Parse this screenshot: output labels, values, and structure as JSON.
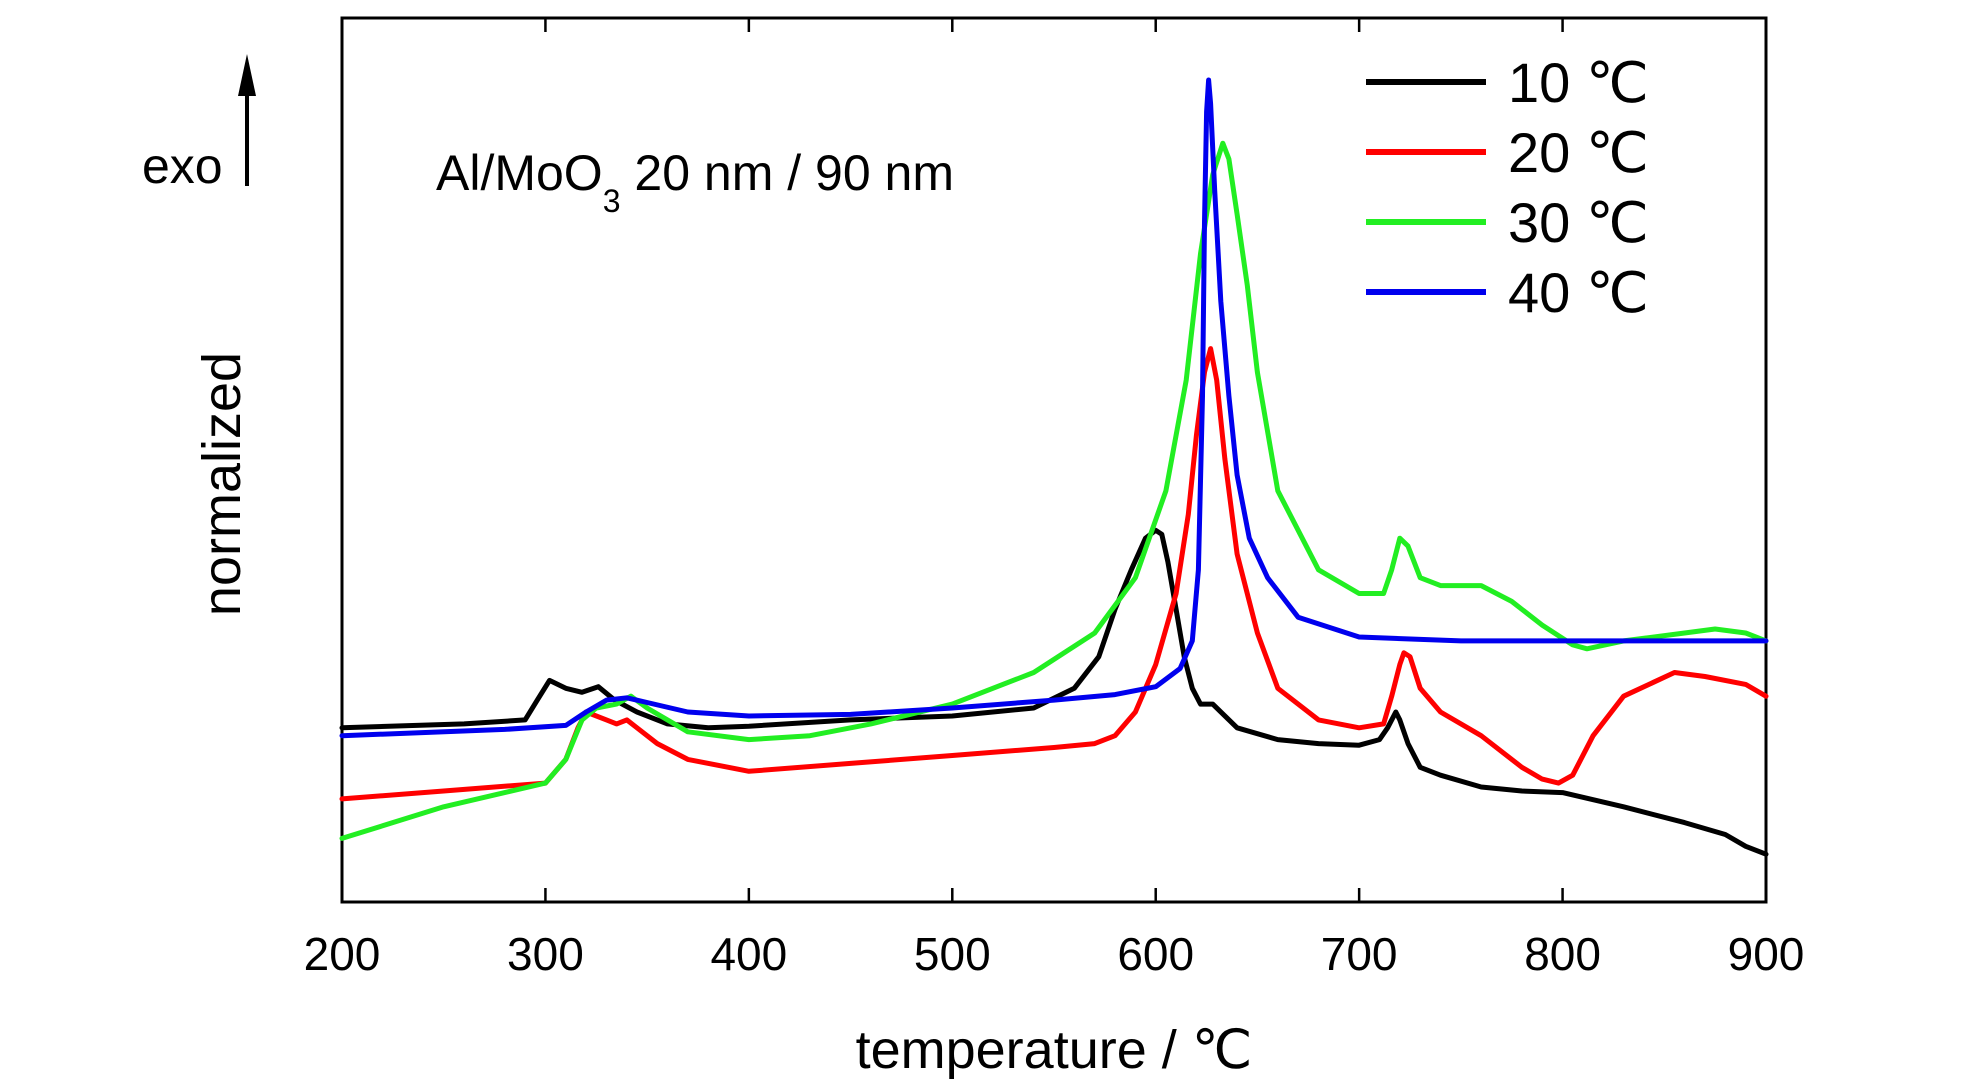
{
  "chart_data": {
    "type": "line",
    "xlabel": "temperature / ℃",
    "ylabel": "normalized",
    "xlim": [
      200,
      900
    ],
    "ylim": [
      0,
      1
    ],
    "y_ticks_shown": false,
    "grid": false,
    "legend_position": "top-right",
    "x_ticks": [
      "200",
      "300",
      "400",
      "500",
      "600",
      "700",
      "800",
      "900"
    ],
    "annotation": {
      "prefix": "Al/MoO",
      "sub": "3",
      "suffix": " 20 nm / 90 nm"
    },
    "exo_label": "exo",
    "series": [
      {
        "name": "10 ℃",
        "color": "#000000",
        "x": [
          200,
          260,
          290,
          296,
          302,
          310,
          318,
          326,
          334,
          345,
          360,
          380,
          400,
          450,
          500,
          540,
          560,
          572,
          580,
          588,
          595,
          600,
          603,
          606,
          610,
          614,
          618,
          622,
          628,
          640,
          660,
          680,
          700,
          710,
          714,
          718,
          720,
          724,
          730,
          740,
          760,
          780,
          800,
          830,
          860,
          880,
          890,
          900
        ],
        "y": [
          0.18,
          0.185,
          0.19,
          0.215,
          0.24,
          0.23,
          0.225,
          0.232,
          0.215,
          0.2,
          0.185,
          0.18,
          0.182,
          0.19,
          0.195,
          0.205,
          0.23,
          0.27,
          0.33,
          0.38,
          0.42,
          0.43,
          0.425,
          0.39,
          0.33,
          0.27,
          0.23,
          0.21,
          0.21,
          0.18,
          0.165,
          0.16,
          0.158,
          0.165,
          0.18,
          0.2,
          0.19,
          0.16,
          0.13,
          0.12,
          0.105,
          0.1,
          0.098,
          0.08,
          0.06,
          0.045,
          0.03,
          0.02
        ]
      },
      {
        "name": "20 ℃",
        "color": "#ff0000",
        "x": [
          200,
          250,
          300,
          310,
          316,
          320,
          330,
          335,
          340,
          345,
          355,
          370,
          400,
          450,
          500,
          550,
          570,
          580,
          590,
          600,
          610,
          616,
          620,
          624,
          627,
          630,
          634,
          640,
          650,
          660,
          680,
          700,
          712,
          716,
          720,
          722,
          725,
          730,
          740,
          760,
          780,
          790,
          798,
          805,
          815,
          830,
          855,
          870,
          890,
          900
        ],
        "y": [
          0.09,
          0.1,
          0.11,
          0.14,
          0.18,
          0.2,
          0.19,
          0.185,
          0.19,
          0.18,
          0.16,
          0.14,
          0.125,
          0.135,
          0.145,
          0.155,
          0.16,
          0.17,
          0.2,
          0.26,
          0.35,
          0.45,
          0.55,
          0.63,
          0.66,
          0.62,
          0.52,
          0.4,
          0.3,
          0.23,
          0.19,
          0.18,
          0.185,
          0.22,
          0.26,
          0.275,
          0.27,
          0.23,
          0.2,
          0.17,
          0.13,
          0.115,
          0.11,
          0.12,
          0.17,
          0.22,
          0.25,
          0.245,
          0.235,
          0.22
        ]
      },
      {
        "name": "30 ℃",
        "color": "#22ee22",
        "x": [
          200,
          250,
          300,
          310,
          318,
          325,
          335,
          342,
          350,
          370,
          400,
          430,
          460,
          500,
          540,
          570,
          590,
          605,
          615,
          622,
          628,
          633,
          636,
          640,
          645,
          650,
          660,
          680,
          700,
          712,
          716,
          720,
          724,
          730,
          740,
          760,
          775,
          790,
          805,
          812,
          830,
          860,
          875,
          890,
          900
        ],
        "y": [
          0.04,
          0.08,
          0.11,
          0.14,
          0.19,
          0.205,
          0.21,
          0.22,
          0.205,
          0.175,
          0.165,
          0.17,
          0.185,
          0.21,
          0.25,
          0.3,
          0.37,
          0.48,
          0.62,
          0.78,
          0.88,
          0.92,
          0.9,
          0.83,
          0.74,
          0.63,
          0.48,
          0.38,
          0.35,
          0.35,
          0.38,
          0.42,
          0.41,
          0.37,
          0.36,
          0.36,
          0.34,
          0.31,
          0.285,
          0.28,
          0.29,
          0.3,
          0.305,
          0.3,
          0.29
        ]
      },
      {
        "name": "40 ℃",
        "color": "#0000ee",
        "x": [
          200,
          280,
          310,
          320,
          330,
          340,
          350,
          370,
          400,
          450,
          500,
          550,
          580,
          600,
          612,
          618,
          621,
          623,
          624,
          625,
          626,
          627,
          629,
          632,
          636,
          640,
          646,
          655,
          670,
          700,
          750,
          800,
          850,
          900
        ],
        "y": [
          0.17,
          0.178,
          0.183,
          0.2,
          0.215,
          0.218,
          0.212,
          0.2,
          0.195,
          0.197,
          0.205,
          0.215,
          0.222,
          0.232,
          0.255,
          0.29,
          0.38,
          0.6,
          0.82,
          0.96,
          1.0,
          0.97,
          0.86,
          0.72,
          0.6,
          0.5,
          0.42,
          0.37,
          0.32,
          0.295,
          0.29,
          0.29,
          0.29,
          0.29
        ]
      }
    ]
  }
}
